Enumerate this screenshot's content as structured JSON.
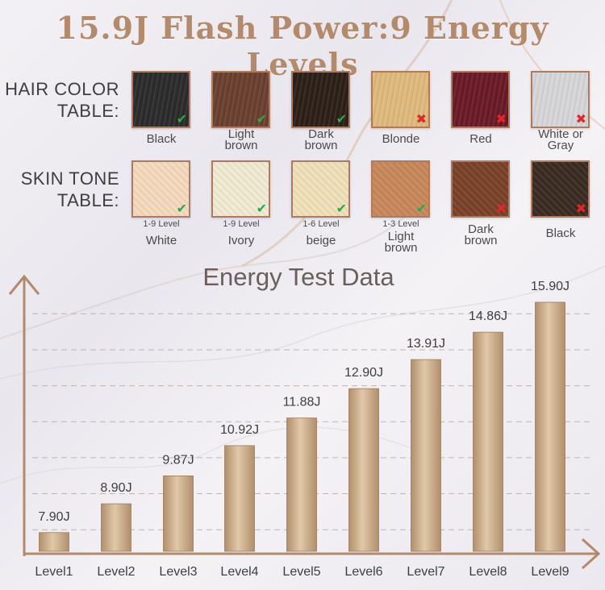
{
  "title": "15.9J Flash Power:9 Energy Levels",
  "hair_table": {
    "label_line1": "HAIR COLOR",
    "label_line2": "TABLE:",
    "items": [
      {
        "name": "Black",
        "color": "#2b2b2b",
        "ok": true
      },
      {
        "name": "Light\nbrown",
        "color": "#6b3f2e",
        "ok": true
      },
      {
        "name": "Dark\nbrown",
        "color": "#2c1f18",
        "ok": true
      },
      {
        "name": "Blonde",
        "color": "#e0b97c",
        "ok": false
      },
      {
        "name": "Red",
        "color": "#6a1a26",
        "ok": false
      },
      {
        "name": "White or\nGray",
        "color": "#d6d6d8",
        "ok": false
      }
    ]
  },
  "skin_table": {
    "label_line1": "SKIN TONE",
    "label_line2": "TABLE:",
    "items": [
      {
        "name": "White",
        "level": "1-9 Level",
        "color": "#f5d9bd",
        "ok": true
      },
      {
        "name": "Ivory",
        "level": "1-9 Level",
        "color": "#f1ead2",
        "ok": true
      },
      {
        "name": "beige",
        "level": "1-6 Level",
        "color": "#efe0b8",
        "ok": true
      },
      {
        "name": "Light\nbrown",
        "level": "1-3 Level",
        "color": "#c8875a",
        "ok": true
      },
      {
        "name": "Dark\nbrown",
        "level": "",
        "color": "#7a4028",
        "ok": false
      },
      {
        "name": "Black",
        "level": "",
        "color": "#3a2a22",
        "ok": false
      }
    ]
  },
  "marks": {
    "ok": "✔",
    "no": "✖"
  },
  "colors": {
    "bar_light": "#e1c8a8",
    "bar_dark": "#b08f6c",
    "axis": "#b48a6c",
    "ok": "#2fa84a",
    "no": "#e02828"
  },
  "chart_data": {
    "type": "bar",
    "title": "Energy Test Data",
    "categories": [
      "Level1",
      "Level2",
      "Level3",
      "Level4",
      "Level5",
      "Level6",
      "Level7",
      "Level8",
      "Level9"
    ],
    "values": [
      7.9,
      8.9,
      9.87,
      10.92,
      11.88,
      12.9,
      13.91,
      14.86,
      15.9
    ],
    "value_labels": [
      "7.90J",
      "8.90J",
      "9.87J",
      "10.92J",
      "11.88J",
      "12.90J",
      "13.91J",
      "14.86J",
      "15.90J"
    ],
    "ylim": [
      7,
      16
    ],
    "grid": true
  }
}
